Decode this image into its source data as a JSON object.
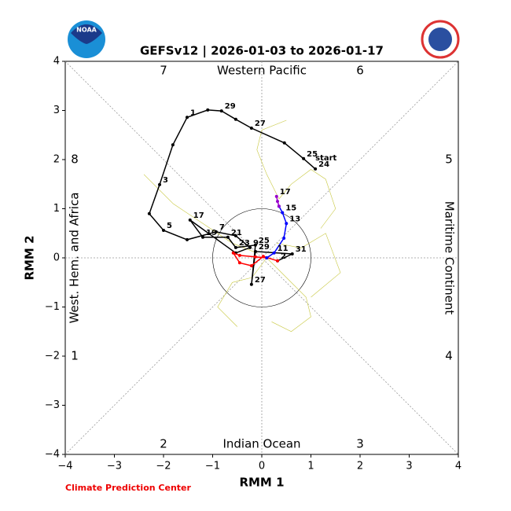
{
  "chart_data": {
    "type": "line",
    "title": "GEFSv12 | 2026-01-03 to 2026-01-17",
    "xlabel": "RMM 1",
    "ylabel": "RMM 2",
    "xlim": [
      -4,
      4
    ],
    "ylim": [
      -4,
      4
    ],
    "xticks": [
      {
        "value": -4,
        "label": "−4"
      },
      {
        "value": -3,
        "label": "−3"
      },
      {
        "value": -2,
        "label": "−2"
      },
      {
        "value": -1,
        "label": "−1"
      },
      0,
      1,
      2,
      3,
      4
    ],
    "yticks": [
      {
        "value": -4,
        "label": "−4"
      },
      {
        "value": -3,
        "label": "−3"
      },
      {
        "value": -2,
        "label": "−2"
      },
      {
        "value": -1,
        "label": "−1"
      },
      0,
      1,
      2,
      3,
      4
    ],
    "phase_labels": [
      "1",
      "2",
      "3",
      "4",
      "5",
      "6",
      "7",
      "8"
    ],
    "regions": {
      "top": "Western Pacific",
      "bottom": "Indian Ocean",
      "left": "West. Hem. and Africa",
      "right": "Maritime Continent"
    },
    "start_label": "start",
    "credit": "Climate Prediction Center",
    "logo_text": "NOAA",
    "series": [
      {
        "color": "#000000",
        "x": [
          1.09,
          0.85,
          0.46,
          -0.21,
          -0.53,
          -0.82,
          -1.1,
          -1.52,
          -1.81,
          -2.08,
          -2.29,
          -2.0,
          -1.52,
          -0.93,
          -0.53,
          -0.24,
          -0.53,
          -1.46,
          -1.2,
          -0.69,
          -0.53,
          -0.13,
          -0.21,
          -0.13,
          0.62,
          0.32
        ],
        "values": [
          1.81,
          2.02,
          2.34,
          2.64,
          2.82,
          2.99,
          3.01,
          2.86,
          2.3,
          1.49,
          0.9,
          0.56,
          0.37,
          0.53,
          0.45,
          0.21,
          0.1,
          0.77,
          0.42,
          0.42,
          0.21,
          0.26,
          -0.54,
          0.13,
          0.08,
          -0.06
        ],
        "point_labels": [
          "24",
          "25",
          null,
          "27",
          null,
          "29",
          null,
          "1",
          null,
          "3",
          null,
          "5",
          null,
          "7",
          null,
          "9",
          null,
          "17",
          "19",
          "21",
          "23",
          "25",
          "27",
          "29",
          "31",
          "2"
        ]
      },
      {
        "color": "#ff0000",
        "x": [
          0.32,
          0.03,
          -0.21,
          -0.45,
          -0.58,
          -0.45,
          -0.13,
          0.1
        ],
        "values": [
          -0.06,
          0.03,
          -0.16,
          -0.1,
          0.1,
          0.05,
          0.02,
          0.0
        ],
        "point_labels": [
          null,
          null,
          null,
          null,
          null,
          null,
          null,
          null
        ]
      },
      {
        "color": "#0000ff",
        "x": [
          0.1,
          0.25,
          0.45,
          0.5,
          0.42,
          0.35
        ],
        "values": [
          0.0,
          0.1,
          0.4,
          0.7,
          0.92,
          1.05
        ],
        "point_labels": [
          null,
          "11",
          null,
          "13",
          "15",
          null
        ]
      },
      {
        "color": "#9900cc",
        "x": [
          0.35,
          0.32,
          0.3
        ],
        "values": [
          1.05,
          1.15,
          1.25
        ],
        "point_labels": [
          null,
          null,
          "17"
        ]
      }
    ],
    "ensemble": [
      {
        "color": "#c8c840",
        "x": [
          0.35,
          0.6,
          1.0,
          1.3,
          1.5,
          1.2
        ],
        "values": [
          1.2,
          1.5,
          1.8,
          1.6,
          1.0,
          0.6
        ]
      },
      {
        "color": "#c8c840",
        "x": [
          -0.1,
          -0.6,
          -1.2,
          -1.8,
          -2.4
        ],
        "values": [
          0.1,
          0.3,
          0.7,
          1.1,
          1.7
        ]
      },
      {
        "color": "#c8c840",
        "x": [
          0.1,
          0.5,
          0.9,
          1.0,
          0.6,
          0.2
        ],
        "values": [
          0.0,
          -0.4,
          -0.8,
          -1.2,
          -1.5,
          -1.3
        ]
      },
      {
        "color": "#c8c840",
        "x": [
          0.1,
          -0.2,
          -0.6,
          -0.9,
          -0.5
        ],
        "values": [
          0.0,
          -0.4,
          -0.5,
          -1.0,
          -1.4
        ]
      },
      {
        "color": "#c8c840",
        "x": [
          0.35,
          0.1,
          -0.1,
          0.0,
          0.5
        ],
        "values": [
          1.2,
          1.7,
          2.2,
          2.6,
          2.8
        ]
      },
      {
        "color": "#c8c840",
        "x": [
          0.3,
          0.8,
          1.3,
          1.6,
          1.0
        ],
        "values": [
          0.3,
          0.2,
          0.5,
          -0.3,
          -0.8
        ]
      }
    ]
  }
}
